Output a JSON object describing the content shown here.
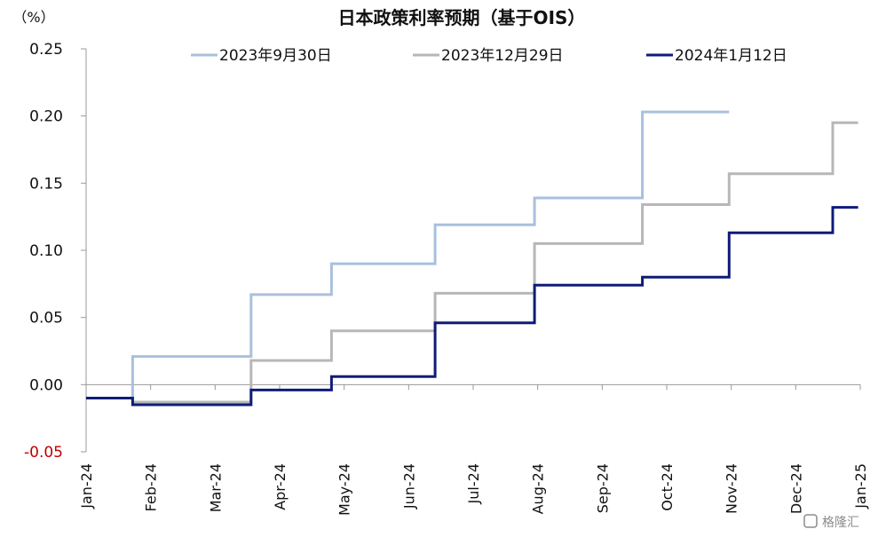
{
  "chart_data": {
    "type": "line",
    "title": "日本政策利率预期（基于OIS）",
    "unit_label": "（%）",
    "ylim": [
      -0.05,
      0.25
    ],
    "y_ticks": [
      "0.25",
      "0.20",
      "0.15",
      "0.10",
      "0.05",
      "0.00",
      "-0.05"
    ],
    "y_tick_values": [
      0.25,
      0.2,
      0.15,
      0.1,
      0.05,
      0.0,
      -0.05
    ],
    "x_ticks": [
      "Jan-24",
      "Feb-24",
      "Mar-24",
      "Apr-24",
      "May-24",
      "Jun-24",
      "Jul-24",
      "Aug-24",
      "Sep-24",
      "Oct-24",
      "Nov-24",
      "Dec-24",
      "Jan-25"
    ],
    "x_range": [
      "2024-01-01",
      "2025-01-01"
    ],
    "legend_position": "top",
    "grid": false,
    "series": [
      {
        "name": "2023年9月30日",
        "color": "#a9c0dd",
        "points": [
          [
            "2024-01-01",
            -0.01
          ],
          [
            "2024-01-23",
            -0.01
          ],
          [
            "2024-01-23",
            0.021
          ],
          [
            "2024-03-19",
            0.021
          ],
          [
            "2024-03-19",
            0.067
          ],
          [
            "2024-04-26",
            0.067
          ],
          [
            "2024-04-26",
            0.09
          ],
          [
            "2024-06-14",
            0.09
          ],
          [
            "2024-06-14",
            0.119
          ],
          [
            "2024-07-31",
            0.119
          ],
          [
            "2024-07-31",
            0.139
          ],
          [
            "2024-09-20",
            0.139
          ],
          [
            "2024-09-20",
            0.203
          ],
          [
            "2024-10-31",
            0.203
          ]
        ]
      },
      {
        "name": "2023年12月29日",
        "color": "#b7b7b7",
        "points": [
          [
            "2024-01-01",
            -0.01
          ],
          [
            "2024-01-23",
            -0.01
          ],
          [
            "2024-01-23",
            -0.013
          ],
          [
            "2024-03-19",
            -0.013
          ],
          [
            "2024-03-19",
            0.018
          ],
          [
            "2024-04-26",
            0.018
          ],
          [
            "2024-04-26",
            0.04
          ],
          [
            "2024-06-14",
            0.04
          ],
          [
            "2024-06-14",
            0.068
          ],
          [
            "2024-07-31",
            0.068
          ],
          [
            "2024-07-31",
            0.105
          ],
          [
            "2024-09-20",
            0.105
          ],
          [
            "2024-09-20",
            0.134
          ],
          [
            "2024-10-31",
            0.134
          ],
          [
            "2024-10-31",
            0.157
          ],
          [
            "2024-12-19",
            0.157
          ],
          [
            "2024-12-19",
            0.195
          ],
          [
            "2024-12-31",
            0.195
          ]
        ]
      },
      {
        "name": "2024年1月12日",
        "color": "#0f1c78",
        "points": [
          [
            "2024-01-01",
            -0.01
          ],
          [
            "2024-01-23",
            -0.01
          ],
          [
            "2024-01-23",
            -0.015
          ],
          [
            "2024-03-19",
            -0.015
          ],
          [
            "2024-03-19",
            -0.004
          ],
          [
            "2024-04-26",
            -0.004
          ],
          [
            "2024-04-26",
            0.006
          ],
          [
            "2024-06-14",
            0.006
          ],
          [
            "2024-06-14",
            0.046
          ],
          [
            "2024-07-31",
            0.046
          ],
          [
            "2024-07-31",
            0.074
          ],
          [
            "2024-09-20",
            0.074
          ],
          [
            "2024-09-20",
            0.08
          ],
          [
            "2024-10-31",
            0.08
          ],
          [
            "2024-10-31",
            0.113
          ],
          [
            "2024-12-19",
            0.113
          ],
          [
            "2024-12-19",
            0.132
          ],
          [
            "2024-12-31",
            0.132
          ]
        ]
      }
    ]
  },
  "watermark": "格隆汇"
}
